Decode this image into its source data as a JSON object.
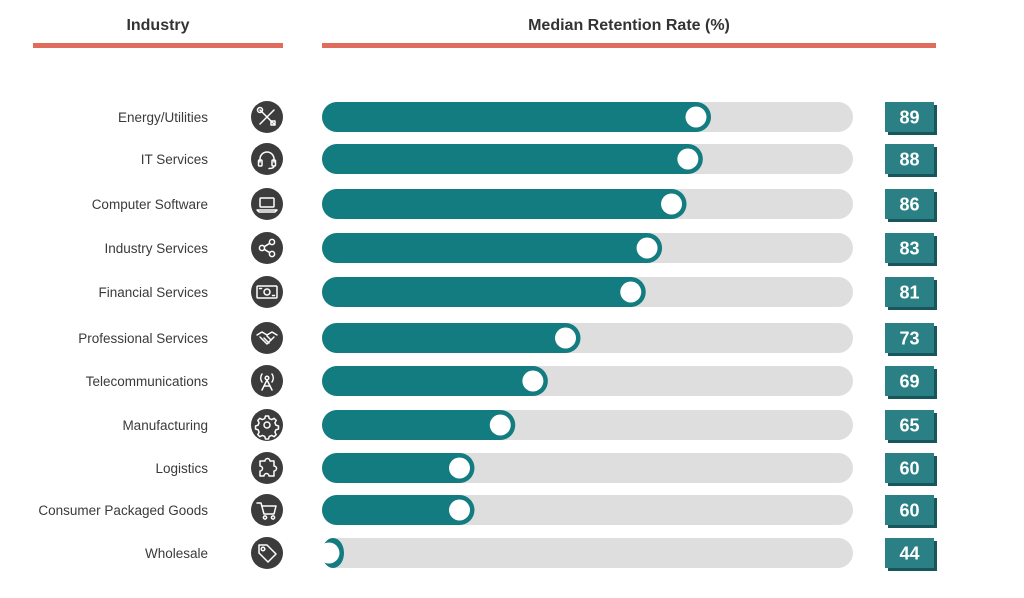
{
  "headers": {
    "industry": "Industry",
    "rate": "Median Retention Rate (%)"
  },
  "colors": {
    "accent_rule": "#e06c5e",
    "bar_fill": "#137c80",
    "track": "#dedede",
    "knob": "#ffffff",
    "value_box": "#2a8085",
    "value_shadow": "#17565a",
    "icon_circle": "#3c3c3c"
  },
  "chart_data": {
    "type": "bar",
    "orientation": "horizontal",
    "categories": [
      "Energy/Utilities",
      "IT Services",
      "Computer Software",
      "Industry Services",
      "Financial Services",
      "Professional Services",
      "Telecommunications",
      "Manufacturing",
      "Logistics",
      "Consumer Packaged Goods",
      "Wholesale"
    ],
    "icons": [
      "tools-icon",
      "headset-icon",
      "laptop-icon",
      "share-icon",
      "cash-icon",
      "handshake-icon",
      "antenna-icon",
      "gear-icon",
      "puzzle-icon",
      "cart-icon",
      "tag-icon"
    ],
    "values": [
      89,
      88,
      86,
      83,
      81,
      73,
      69,
      65,
      60,
      60,
      44
    ],
    "xlim": [
      0,
      100
    ],
    "grid": false,
    "legend": "none"
  }
}
